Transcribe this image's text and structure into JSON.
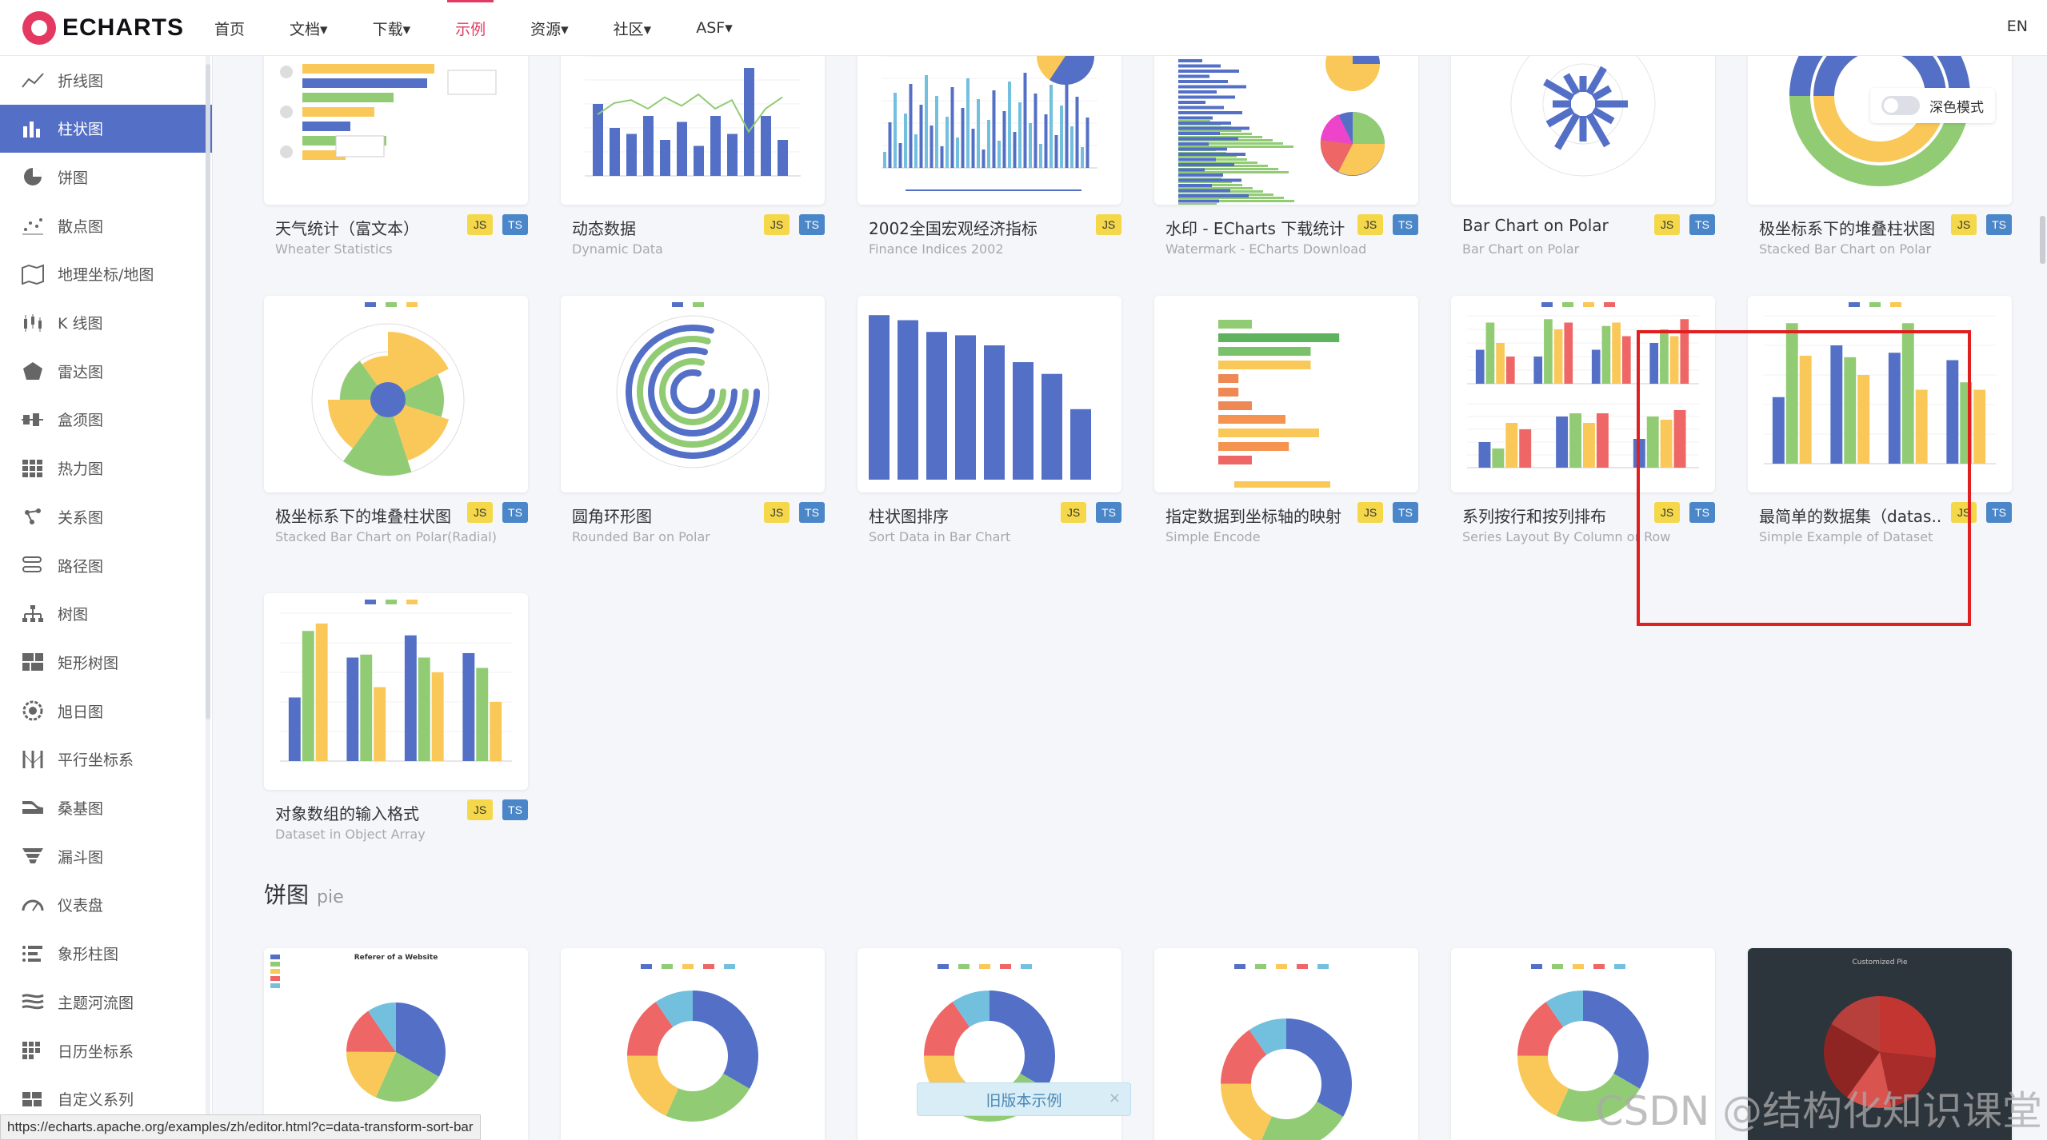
{
  "brand": {
    "logo_text": "ECHARTS"
  },
  "nav": {
    "items": [
      {
        "label": "首页"
      },
      {
        "label": "文档▾"
      },
      {
        "label": "下载▾"
      },
      {
        "label": "示例"
      },
      {
        "label": "资源▾"
      },
      {
        "label": "社区▾"
      },
      {
        "label": "ASF▾"
      }
    ],
    "active_index": 3,
    "lang": "EN"
  },
  "sidebar": {
    "items": [
      {
        "label": "折线图",
        "icon": "line-chart-icon"
      },
      {
        "label": "柱状图",
        "icon": "bar-chart-icon"
      },
      {
        "label": "饼图",
        "icon": "pie-chart-icon"
      },
      {
        "label": "散点图",
        "icon": "scatter-chart-icon"
      },
      {
        "label": "地理坐标/地图",
        "icon": "map-icon"
      },
      {
        "label": "K 线图",
        "icon": "candlestick-icon"
      },
      {
        "label": "雷达图",
        "icon": "radar-icon"
      },
      {
        "label": "盒须图",
        "icon": "boxplot-icon"
      },
      {
        "label": "热力图",
        "icon": "heatmap-icon"
      },
      {
        "label": "关系图",
        "icon": "graph-icon"
      },
      {
        "label": "路径图",
        "icon": "lines-icon"
      },
      {
        "label": "树图",
        "icon": "tree-icon"
      },
      {
        "label": "矩形树图",
        "icon": "treemap-icon"
      },
      {
        "label": "旭日图",
        "icon": "sunburst-icon"
      },
      {
        "label": "平行坐标系",
        "icon": "parallel-icon"
      },
      {
        "label": "桑基图",
        "icon": "sankey-icon"
      },
      {
        "label": "漏斗图",
        "icon": "funnel-icon"
      },
      {
        "label": "仪表盘",
        "icon": "gauge-icon"
      },
      {
        "label": "象形柱图",
        "icon": "pictorial-bar-icon"
      },
      {
        "label": "主题河流图",
        "icon": "theme-river-icon"
      },
      {
        "label": "日历坐标系",
        "icon": "calendar-icon"
      },
      {
        "label": "自定义系列",
        "icon": "custom-series-icon"
      }
    ],
    "active_index": 1
  },
  "bar_examples": [
    {
      "title": "天气统计（富文本）",
      "subtitle": "Wheater Statistics",
      "js": "JS",
      "ts": "TS"
    },
    {
      "title": "动态数据",
      "subtitle": "Dynamic Data",
      "js": "JS",
      "ts": "TS"
    },
    {
      "title": "2002全国宏观经济指标",
      "subtitle": "Finance Indices 2002",
      "js": "JS"
    },
    {
      "title": "水印 - ECharts 下载统计",
      "subtitle": "Watermark - ECharts Download",
      "js": "JS",
      "ts": "TS"
    },
    {
      "title": "Bar Chart on Polar",
      "subtitle": "Bar Chart on Polar",
      "js": "JS",
      "ts": "TS"
    },
    {
      "title": "极坐标系下的堆叠柱状图",
      "subtitle": "Stacked Bar Chart on Polar",
      "js": "JS",
      "ts": "TS"
    },
    {
      "title": "极坐标系下的堆叠柱状图",
      "subtitle": "Stacked Bar Chart on Polar(Radial)",
      "js": "JS",
      "ts": "TS"
    },
    {
      "title": "圆角环形图",
      "subtitle": "Rounded Bar on Polar",
      "js": "JS",
      "ts": "TS"
    },
    {
      "title": "柱状图排序",
      "subtitle": "Sort Data in Bar Chart",
      "js": "JS",
      "ts": "TS"
    },
    {
      "title": "指定数据到坐标轴的映射",
      "subtitle": "Simple Encode",
      "js": "JS",
      "ts": "TS"
    },
    {
      "title": "系列按行和按列排布",
      "subtitle": "Series Layout By Column or Row",
      "js": "JS",
      "ts": "TS"
    },
    {
      "title": "最简单的数据集（datas...",
      "subtitle": "Simple Example of Dataset",
      "js": "JS",
      "ts": "TS"
    },
    {
      "title": "对象数组的输入格式",
      "subtitle": "Dataset in Object Array",
      "js": "JS",
      "ts": "TS"
    }
  ],
  "pie_section": {
    "title": "饼图",
    "title_en": "pie"
  },
  "pie_thumb_titles": [
    "Referer of a Website",
    "Customized Pie"
  ],
  "dark_mode": {
    "label": "深色模式",
    "enabled": false
  },
  "old_version": {
    "label": "旧版本示例",
    "close": "×"
  },
  "status_url": "https://echarts.apache.org/examples/zh/editor.html?c=data-transform-sort-bar",
  "watermark": "CSDN @结构化知识课堂",
  "colors": {
    "accent": "#e43961",
    "active_sidebar": "#5470c6",
    "series": [
      "#5470c6",
      "#91cc75",
      "#fac858",
      "#ee6666",
      "#73c0de"
    ]
  }
}
